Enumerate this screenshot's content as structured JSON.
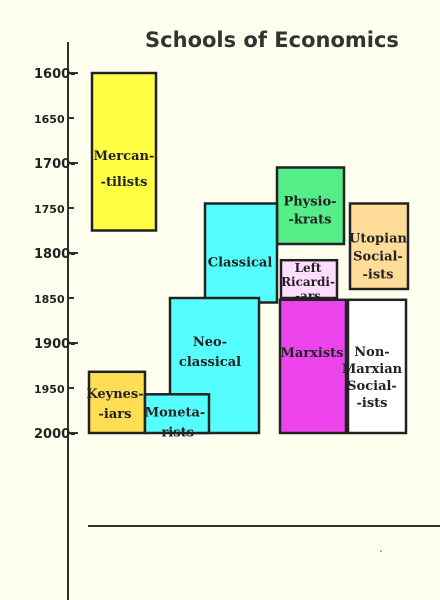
{
  "chart_data": {
    "type": "timeline",
    "title": "Schools of Economics",
    "xlabel": "",
    "ylabel": "",
    "ylim": [
      1595,
      2065
    ],
    "y_inverted": true,
    "grid": false,
    "ticks": [
      {
        "value": 1600,
        "label": "1600-",
        "major": true
      },
      {
        "value": 1650,
        "label": "1650",
        "major": false
      },
      {
        "value": 1700,
        "label": "1700-",
        "major": true
      },
      {
        "value": 1750,
        "label": "1750",
        "major": false
      },
      {
        "value": 1800,
        "label": "1800-",
        "major": true
      },
      {
        "value": 1850,
        "label": "1850",
        "major": false
      },
      {
        "value": 1900,
        "label": "1900-",
        "major": true
      },
      {
        "value": 1950,
        "label": "1950",
        "major": false
      },
      {
        "value": 2000,
        "label": "2000-",
        "major": true
      }
    ],
    "schools": [
      {
        "name": "Mercantilists",
        "lines": [
          "Mercan-",
          "-tilists"
        ],
        "start": 1600,
        "end": 1775,
        "color": "#ffff44"
      },
      {
        "name": "Physiokrats",
        "lines": [
          "Physio-",
          "-krats"
        ],
        "start": 1705,
        "end": 1790,
        "color": "#55ee88"
      },
      {
        "name": "Classical",
        "lines": [
          "Classical"
        ],
        "start": 1745,
        "end": 1855,
        "color": "#55ffff"
      },
      {
        "name": "Utopian Socialists",
        "lines": [
          "Utopian",
          "Social-",
          "-ists"
        ],
        "start": 1745,
        "end": 1840,
        "color": "#ffdd99"
      },
      {
        "name": "Left Ricardians",
        "lines": [
          "Left",
          "Ricardi-",
          "-ars"
        ],
        "start": 1808,
        "end": 1850,
        "color": "#ffddff"
      },
      {
        "name": "Neo-classical",
        "lines": [
          "Neo-",
          "classical"
        ],
        "start": 1850,
        "end": 2000,
        "color": "#55ffff"
      },
      {
        "name": "Marxists",
        "lines": [
          "Marxists"
        ],
        "start": 1852,
        "end": 2000,
        "color": "#ee44ee"
      },
      {
        "name": "Non-Marxian Socialists",
        "lines": [
          "Non-",
          "Marxian",
          "Social-",
          "-ists"
        ],
        "start": 1852,
        "end": 2000,
        "color": "#ffffff"
      },
      {
        "name": "Keynesians",
        "lines": [
          "Keynes-",
          "-iars"
        ],
        "start": 1932,
        "end": 2000,
        "color": "#ffdd55"
      },
      {
        "name": "Monetarists",
        "lines": [
          "Moneta-",
          "-rists"
        ],
        "start": 1957,
        "end": 2000,
        "color": "#55ffff"
      }
    ]
  }
}
